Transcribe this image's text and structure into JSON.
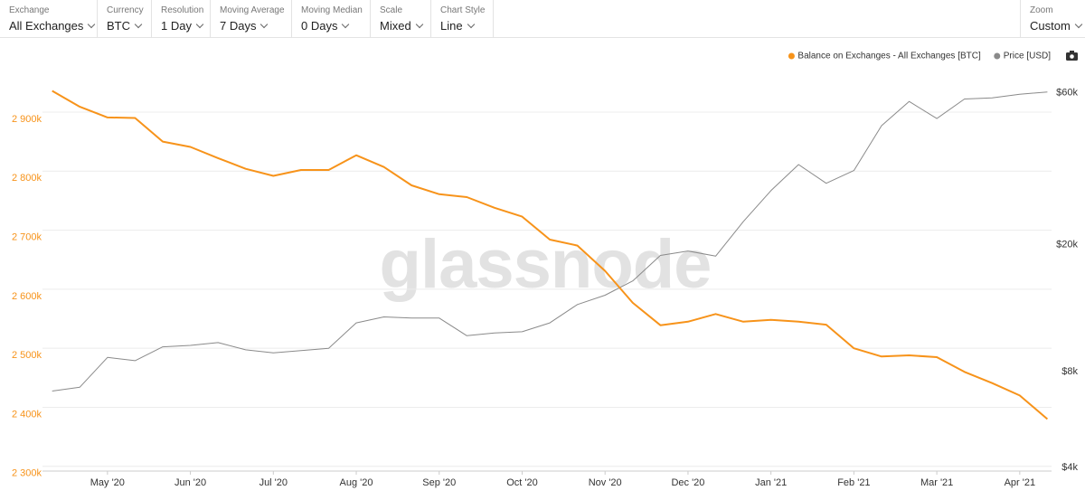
{
  "toolbar": {
    "controls": [
      {
        "label": "Exchange",
        "value": "All Exchanges"
      },
      {
        "label": "Currency",
        "value": "BTC"
      },
      {
        "label": "Resolution",
        "value": "1 Day"
      },
      {
        "label": "Moving Average",
        "value": "7 Days"
      },
      {
        "label": "Moving Median",
        "value": "0 Days"
      },
      {
        "label": "Scale",
        "value": "Mixed"
      },
      {
        "label": "Chart Style",
        "value": "Line"
      }
    ],
    "zoom": {
      "label": "Zoom",
      "value": "Custom"
    }
  },
  "chart_data": {
    "type": "line",
    "watermark": "glassnode",
    "categories": [
      null,
      null,
      "May '20",
      null,
      null,
      "Jun '20",
      null,
      null,
      "Jul '20",
      null,
      null,
      "Aug '20",
      null,
      null,
      "Sep '20",
      null,
      null,
      "Oct '20",
      null,
      null,
      "Nov '20",
      null,
      null,
      "Dec '20",
      null,
      null,
      "Jan '21",
      null,
      null,
      "Feb '21",
      null,
      null,
      "Mar '21",
      null,
      null,
      "Apr '21",
      null
    ],
    "series": [
      {
        "name": "Balance on Exchanges - All Exchanges [BTC]",
        "color": "#f7931a",
        "axis": "y",
        "values": [
          2936000,
          2909000,
          2891000,
          2890000,
          2850000,
          2841000,
          2822000,
          2804000,
          2792000,
          2802000,
          2802000,
          2827000,
          2807000,
          2776000,
          2761000,
          2756000,
          2738000,
          2723000,
          2684000,
          2674000,
          2631000,
          2577000,
          2539000,
          2545000,
          2558000,
          2545000,
          2548000,
          2545000,
          2540000,
          2500000,
          2486000,
          2488000,
          2485000,
          2460000,
          2441000,
          2420000,
          2380000
        ]
      },
      {
        "name": "Price [USD]",
        "color": "#8a8a8a",
        "axis": "y2",
        "values": [
          6900,
          7100,
          8800,
          8600,
          9500,
          9600,
          9800,
          9300,
          9100,
          9250,
          9400,
          11300,
          11800,
          11700,
          11700,
          10300,
          10500,
          10600,
          11300,
          12900,
          13800,
          15300,
          18400,
          19000,
          18300,
          23500,
          29400,
          35500,
          31000,
          34000,
          47000,
          56000,
          49500,
          57000,
          57500,
          59000,
          60000
        ]
      }
    ],
    "ylim": [
      2292000,
      2998000
    ],
    "yticks": [
      {
        "value": 2300000,
        "label": "2 300k"
      },
      {
        "value": 2400000,
        "label": "2 400k"
      },
      {
        "value": 2500000,
        "label": "2 500k"
      },
      {
        "value": 2600000,
        "label": "2 600k"
      },
      {
        "value": 2700000,
        "label": "2 700k"
      },
      {
        "value": 2800000,
        "label": "2 800k"
      },
      {
        "value": 2900000,
        "label": "2 900k"
      }
    ],
    "y2lim": [
      3870,
      78800
    ],
    "y2log": true,
    "y2ticks": [
      {
        "value": 4000,
        "label": "$4k"
      },
      {
        "value": 8000,
        "label": "$8k"
      },
      {
        "value": 20000,
        "label": "$20k"
      },
      {
        "value": 60000,
        "label": "$60k"
      }
    ],
    "grid": true,
    "legend": "top-right"
  }
}
